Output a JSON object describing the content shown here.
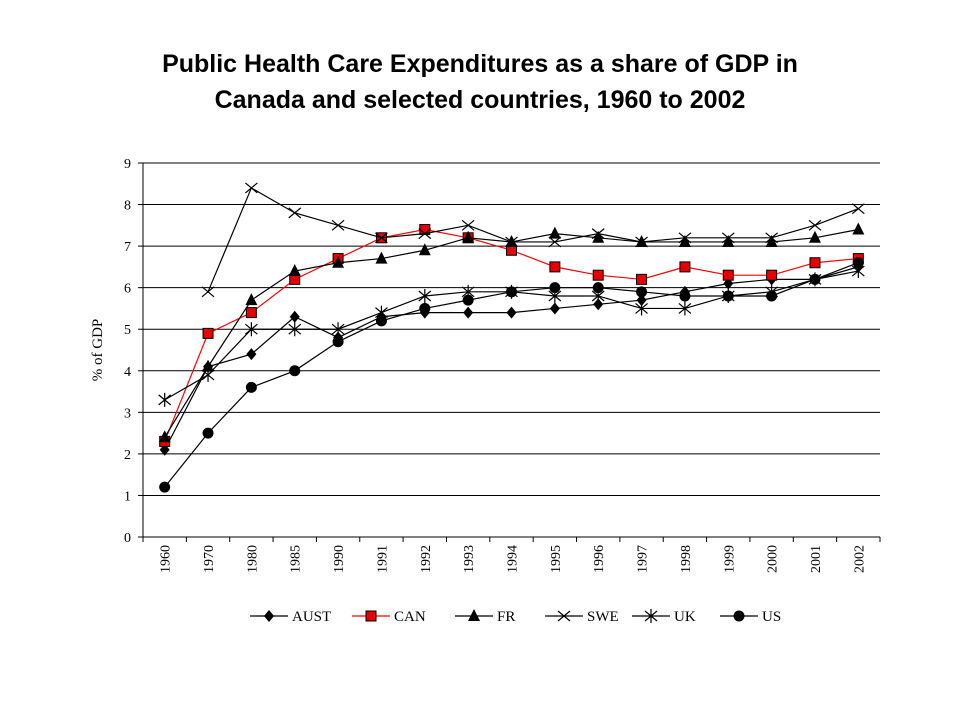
{
  "title_line1": "Public Health Care Expenditures as a share of GDP in",
  "title_line2": "Canada and selected countries, 1960 to 2002",
  "chart_data": {
    "type": "line",
    "title": "Public Health Care Expenditures as a share of GDP in Canada and selected countries, 1960 to 2002",
    "xlabel": "",
    "ylabel": "% of GDP",
    "ylim": [
      0,
      9
    ],
    "yticks": [
      0,
      1,
      2,
      3,
      4,
      5,
      6,
      7,
      8,
      9
    ],
    "grid": "horizontal",
    "legend_position": "bottom",
    "categories": [
      "1960",
      "1970",
      "1980",
      "1985",
      "1990",
      "1991",
      "1992",
      "1993",
      "1994",
      "1995",
      "1996",
      "1997",
      "1998",
      "1999",
      "2000",
      "2001",
      "2002"
    ],
    "series": [
      {
        "name": "AUST",
        "marker": "diamond",
        "color": "#000000",
        "values": [
          2.1,
          4.1,
          4.4,
          5.3,
          4.8,
          5.3,
          5.4,
          5.4,
          5.4,
          5.5,
          5.6,
          5.7,
          5.9,
          6.1,
          6.2,
          6.2,
          6.5
        ]
      },
      {
        "name": "CAN",
        "marker": "square",
        "color": "#ff0000",
        "values": [
          2.3,
          4.9,
          5.4,
          6.2,
          6.7,
          7.2,
          7.4,
          7.2,
          6.9,
          6.5,
          6.3,
          6.2,
          6.5,
          6.3,
          6.3,
          6.6,
          6.7
        ]
      },
      {
        "name": "FR",
        "marker": "triangle",
        "color": "#000000",
        "values": [
          2.4,
          4.1,
          5.7,
          6.4,
          6.6,
          6.7,
          6.9,
          7.2,
          7.1,
          7.3,
          7.2,
          7.1,
          7.1,
          7.1,
          7.1,
          7.2,
          7.4
        ]
      },
      {
        "name": "SWE",
        "marker": "x",
        "color": "#000000",
        "values": [
          null,
          5.9,
          8.4,
          7.8,
          7.5,
          7.2,
          7.3,
          7.5,
          7.1,
          7.1,
          7.3,
          7.1,
          7.2,
          7.2,
          7.2,
          7.5,
          7.9
        ]
      },
      {
        "name": "UK",
        "marker": "star",
        "color": "#000000",
        "values": [
          3.3,
          3.9,
          5.0,
          5.0,
          5.0,
          5.4,
          5.8,
          5.9,
          5.9,
          5.8,
          5.8,
          5.5,
          5.5,
          5.8,
          5.9,
          6.2,
          6.4
        ]
      },
      {
        "name": "US",
        "marker": "circle",
        "color": "#000000",
        "values": [
          1.2,
          2.5,
          3.6,
          4.0,
          4.7,
          5.2,
          5.5,
          5.7,
          5.9,
          6.0,
          6.0,
          5.9,
          5.8,
          5.8,
          5.8,
          6.2,
          6.6
        ]
      }
    ]
  }
}
